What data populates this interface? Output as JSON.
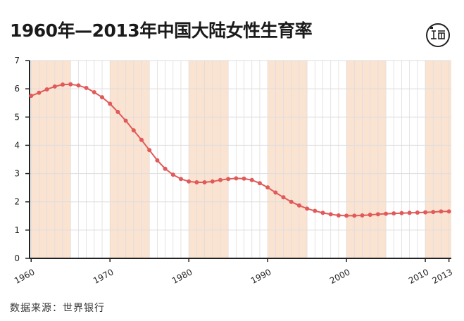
{
  "title": "1960年—2013年中国大陆女性生育率",
  "source": "数据来源：世界银行",
  "logo": {
    "icon": "publisher-logo-icon"
  },
  "colors": {
    "line": "#e05a5a",
    "band": "#fbe3d2",
    "grid": "#dddddd",
    "axis": "#222222"
  },
  "chart_data": {
    "type": "line",
    "title": "1960年—2013年中国大陆女性生育率",
    "xlabel": "",
    "ylabel": "",
    "xlim": [
      1959.8,
      2013.3
    ],
    "ylim": [
      0,
      7
    ],
    "grid": true,
    "y_ticks": [
      0,
      1,
      2,
      3,
      4,
      5,
      6,
      7
    ],
    "x_ticks": [
      "1960",
      "1970",
      "1980",
      "1990",
      "2000",
      "2010",
      "2013"
    ],
    "shaded_bands": [
      [
        1960,
        1965
      ],
      [
        1970,
        1975
      ],
      [
        1980,
        1985
      ],
      [
        1990,
        1995
      ],
      [
        2000,
        2005
      ],
      [
        2010,
        2013.3
      ]
    ],
    "x": [
      1960,
      1961,
      1962,
      1963,
      1964,
      1965,
      1966,
      1967,
      1968,
      1969,
      1970,
      1971,
      1972,
      1973,
      1974,
      1975,
      1976,
      1977,
      1978,
      1979,
      1980,
      1981,
      1982,
      1983,
      1984,
      1985,
      1986,
      1987,
      1988,
      1989,
      1990,
      1991,
      1992,
      1993,
      1994,
      1995,
      1996,
      1997,
      1998,
      1999,
      2000,
      2001,
      2002,
      2003,
      2004,
      2005,
      2006,
      2007,
      2008,
      2009,
      2010,
      2011,
      2012,
      2013
    ],
    "series": [
      {
        "values": [
          5.75,
          5.86,
          5.98,
          6.08,
          6.15,
          6.16,
          6.12,
          6.03,
          5.88,
          5.7,
          5.47,
          5.18,
          4.87,
          4.53,
          4.19,
          3.83,
          3.47,
          3.17,
          2.96,
          2.81,
          2.72,
          2.69,
          2.69,
          2.72,
          2.77,
          2.81,
          2.83,
          2.82,
          2.77,
          2.66,
          2.51,
          2.33,
          2.16,
          2.0,
          1.87,
          1.76,
          1.68,
          1.61,
          1.56,
          1.52,
          1.51,
          1.51,
          1.52,
          1.54,
          1.56,
          1.58,
          1.59,
          1.6,
          1.61,
          1.62,
          1.63,
          1.64,
          1.66,
          1.66
        ]
      }
    ]
  }
}
